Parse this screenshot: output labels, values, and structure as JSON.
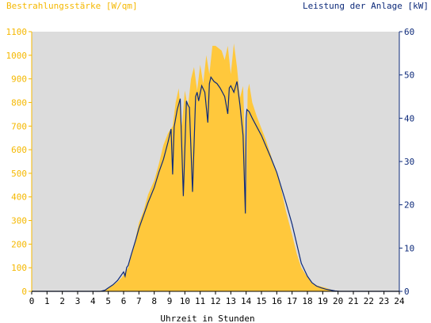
{
  "chart_data": {
    "type": "area",
    "title_left": "Bestrahlungsstärke [W/qm]",
    "title_right": "Leistung der Anlage [kW]",
    "xlabel": "Uhrzeit in Stunden",
    "xlim": [
      0,
      24
    ],
    "ylim_left": [
      0,
      1100
    ],
    "ylim_right": [
      0,
      60
    ],
    "x_ticks": [
      "0",
      "1",
      "2",
      "3",
      "4",
      "5",
      "6",
      "7",
      "8",
      "9",
      "10",
      "11",
      "12",
      "13",
      "14",
      "15",
      "16",
      "17",
      "18",
      "19",
      "20",
      "21",
      "22",
      "23",
      "24"
    ],
    "y_left_ticks": [
      "0",
      "100",
      "200",
      "300",
      "400",
      "500",
      "600",
      "700",
      "800",
      "900",
      "1000",
      "1100"
    ],
    "y_right_ticks": [
      "0",
      "10",
      "20",
      "30",
      "40",
      "50",
      "60"
    ],
    "grid": false,
    "colors": {
      "plot_background": "#dcdcdc",
      "irradiance": "#ffc83c",
      "power": "#0d2a7a",
      "left_axis": "#f5b800",
      "right_axis": "#0d2a7a"
    },
    "series": [
      {
        "name": "Bestrahlungsstärke",
        "axis": "left",
        "x": [
          0,
          4.5,
          4.8,
          5.0,
          5.3,
          5.6,
          5.9,
          6.1,
          6.3,
          6.5,
          6.8,
          7.0,
          7.3,
          7.6,
          8.0,
          8.3,
          8.6,
          8.9,
          9.2,
          9.4,
          9.6,
          9.8,
          10.0,
          10.2,
          10.4,
          10.6,
          10.8,
          11.0,
          11.2,
          11.4,
          11.6,
          11.8,
          12.0,
          12.2,
          12.4,
          12.6,
          12.8,
          13.0,
          13.2,
          13.4,
          13.6,
          13.8,
          13.95,
          14.0,
          14.1,
          14.2,
          14.4,
          14.7,
          15.0,
          15.3,
          15.6,
          16.0,
          16.3,
          16.6,
          17.0,
          17.3,
          17.6,
          18.0,
          18.3,
          18.6,
          18.9,
          19.2,
          19.5,
          19.8,
          20.1,
          20.5,
          21.0,
          24
        ],
        "values": [
          0,
          0,
          5,
          15,
          25,
          40,
          60,
          80,
          100,
          150,
          230,
          290,
          340,
          410,
          470,
          540,
          620,
          670,
          700,
          800,
          860,
          700,
          850,
          780,
          900,
          950,
          850,
          960,
          880,
          1000,
          920,
          1040,
          1040,
          1030,
          1020,
          980,
          1040,
          920,
          1050,
          950,
          820,
          870,
          600,
          400,
          850,
          880,
          800,
          740,
          690,
          640,
          580,
          500,
          430,
          340,
          240,
          160,
          100,
          60,
          35,
          25,
          20,
          15,
          8,
          3,
          0,
          0,
          0,
          0
        ]
      },
      {
        "name": "Leistung der Anlage",
        "axis": "right",
        "x": [
          0,
          4.5,
          4.8,
          5.0,
          5.3,
          5.6,
          5.9,
          6.0,
          6.1,
          6.2,
          6.3,
          6.5,
          6.8,
          7.0,
          7.3,
          7.6,
          8.0,
          8.3,
          8.6,
          8.9,
          9.1,
          9.2,
          9.3,
          9.5,
          9.7,
          9.9,
          10.1,
          10.2,
          10.3,
          10.5,
          10.7,
          10.8,
          10.9,
          11.1,
          11.3,
          11.5,
          11.6,
          11.7,
          11.9,
          12.1,
          12.3,
          12.6,
          12.8,
          12.9,
          13.0,
          13.2,
          13.4,
          13.6,
          13.8,
          13.95,
          14.0,
          14.05,
          14.2,
          14.4,
          14.7,
          15.0,
          15.3,
          15.6,
          16.0,
          16.3,
          16.6,
          17.0,
          17.3,
          17.6,
          18.0,
          18.3,
          18.6,
          18.9,
          19.2,
          19.5,
          19.8,
          20.1,
          20.4,
          24
        ],
        "values": [
          0,
          0,
          0.3,
          0.8,
          1.5,
          2.5,
          4.0,
          4.5,
          3.5,
          5.5,
          6.0,
          8.5,
          12.0,
          14.5,
          17.5,
          20.5,
          24.0,
          27.5,
          30.5,
          34.5,
          37.5,
          27.0,
          38.0,
          42.0,
          44.5,
          22.0,
          44.0,
          43.0,
          42.5,
          23.0,
          45.0,
          46.0,
          44.0,
          47.5,
          46.0,
          39.0,
          48.0,
          49.5,
          48.5,
          48.0,
          47.0,
          45.0,
          41.0,
          47.0,
          47.5,
          46.0,
          48.5,
          43.0,
          36.0,
          18.0,
          40.0,
          42.0,
          41.5,
          40.0,
          38.0,
          36.0,
          33.5,
          31.0,
          27.5,
          24.0,
          20.5,
          15.5,
          11.0,
          6.5,
          3.5,
          2.0,
          1.2,
          0.8,
          0.5,
          0.3,
          0.1,
          0,
          0,
          0
        ]
      }
    ]
  }
}
